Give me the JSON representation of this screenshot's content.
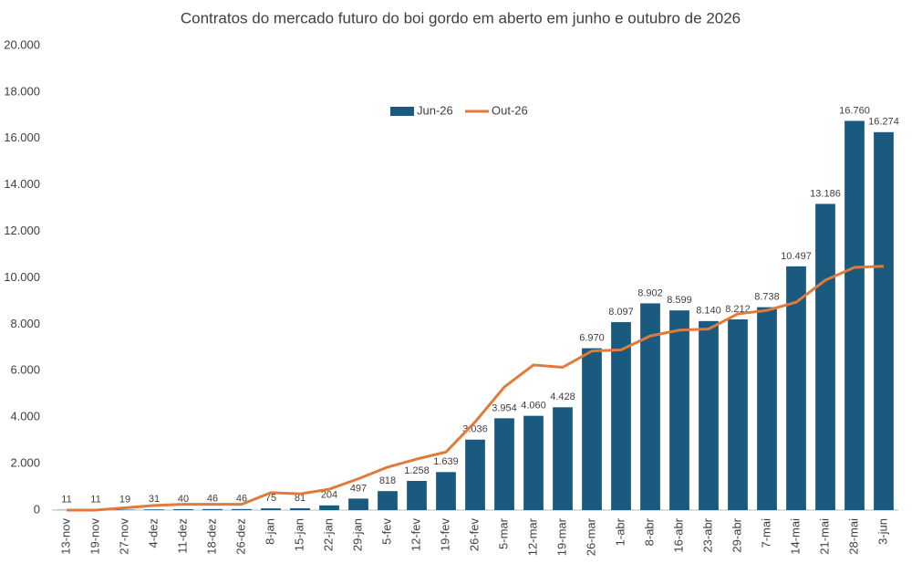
{
  "chart_data": {
    "type": "bar-line",
    "title": "Contratos do mercado futuro do boi gordo em aberto em junho  e outubro de 2026",
    "categories": [
      "13-nov",
      "19-nov",
      "27-nov",
      "4-dez",
      "11-dez",
      "18-dez",
      "26-dez",
      "8-jan",
      "15-jan",
      "22-jan",
      "29-jan",
      "5-fev",
      "12-fev",
      "19-fev",
      "26-fev",
      "5-mar",
      "12-mar",
      "19-mar",
      "26-mar",
      "1-abr",
      "8-abr",
      "16-abr",
      "23-abr",
      "29-abr",
      "7-mai",
      "14-mai",
      "21-mai",
      "28-mai",
      "3-jun"
    ],
    "series": [
      {
        "name": "Jun-26",
        "type": "bar",
        "color": "#1a5a7e",
        "values": [
          11,
          11,
          19,
          31,
          40,
          46,
          46,
          75,
          81,
          204,
          497,
          818,
          1258,
          1639,
          3036,
          3954,
          4060,
          4428,
          6970,
          8097,
          8902,
          8599,
          8140,
          8212,
          8738,
          10497,
          13186,
          16760,
          16274
        ],
        "value_labels": [
          "11",
          "11",
          "19",
          "31",
          "40",
          "46",
          "46",
          "75",
          "81",
          "204",
          "497",
          "818",
          "1.258",
          "1.639",
          "3.036",
          "3.954",
          "4.060",
          "4.428",
          "6.970",
          "8.097",
          "8.902",
          "8.599",
          "8.140",
          "8.212",
          "8.738",
          "10.497",
          "13.186",
          "16.760",
          "16.274"
        ]
      },
      {
        "name": "Out-26",
        "type": "line",
        "color": "#e07b39",
        "values": [
          0,
          0,
          100,
          200,
          250,
          250,
          250,
          750,
          700,
          900,
          1350,
          1850,
          2200,
          2500,
          3800,
          5300,
          6250,
          6150,
          6850,
          6900,
          7500,
          7750,
          7800,
          8450,
          8600,
          8950,
          9900,
          10450,
          10500
        ]
      }
    ],
    "ylim": [
      0,
      20000
    ],
    "yticks": [
      0,
      {
        "value": 2000,
        "label": "2.000"
      },
      {
        "value": 4000,
        "label": "4.000"
      },
      {
        "value": 6000,
        "label": "6.000"
      },
      {
        "value": 8000,
        "label": "8.000"
      },
      {
        "value": 10000,
        "label": "10.000"
      },
      {
        "value": 12000,
        "label": "12.000"
      },
      {
        "value": 14000,
        "label": "14.000"
      },
      {
        "value": 16000,
        "label": "16.000"
      },
      {
        "value": 18000,
        "label": "18.000"
      },
      {
        "value": 20000,
        "label": "20.000"
      }
    ],
    "legend": "top"
  }
}
